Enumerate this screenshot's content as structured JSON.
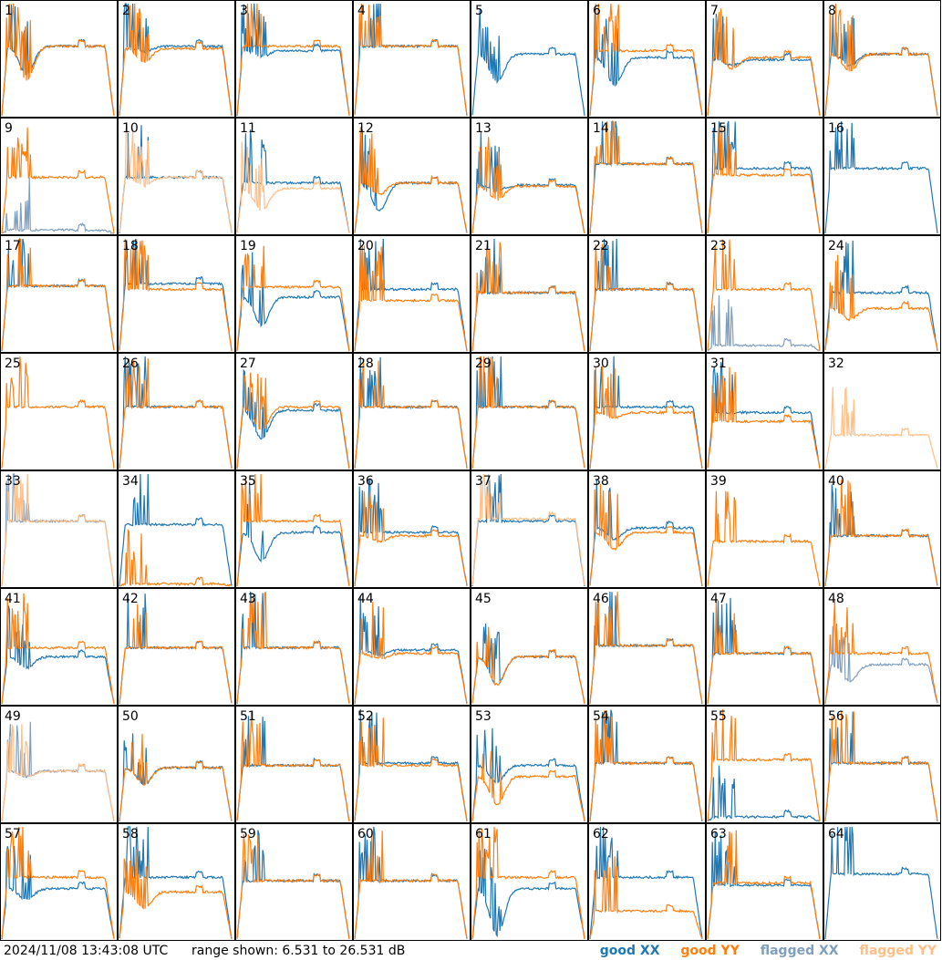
{
  "timestamp": "2024/11/08 13:43:08 UTC",
  "range_text": "range shown: 6.531 to 26.531 dB",
  "legend": [
    {
      "label": "good XX",
      "color": "#1f77b4"
    },
    {
      "label": "good YY",
      "color": "#ff7f0e"
    },
    {
      "label": "flagged XX",
      "color": "#7f9fbf"
    },
    {
      "label": "flagged YY",
      "color": "#ffbf87"
    }
  ],
  "chart_data": {
    "type": "line",
    "title": "",
    "xlabel": "",
    "ylabel": "",
    "ylim": [
      6.531,
      26.531
    ],
    "grid": false,
    "legend_placement": "bottom-right",
    "panels": [
      {
        "id": "1",
        "xx": "good",
        "yy": "good",
        "level_xx": 0.62,
        "level_yy": 0.62,
        "dip_xx": 0.25,
        "dip_yy": 0.3
      },
      {
        "id": "2",
        "xx": "good",
        "yy": "good",
        "level_xx": 0.62,
        "level_yy": 0.6,
        "dip_xx": 0.05,
        "dip_yy": 0.12
      },
      {
        "id": "3",
        "xx": "good",
        "yy": "good",
        "level_xx": 0.58,
        "level_yy": 0.62,
        "dip_xx": 0.05,
        "dip_yy": 0.0
      },
      {
        "id": "4",
        "xx": "good",
        "yy": "good",
        "level_xx": 0.62,
        "level_yy": 0.62,
        "dip_xx": 0.0,
        "dip_yy": 0.0
      },
      {
        "id": "5",
        "xx": "good",
        "yy": "none",
        "level_xx": 0.55,
        "level_yy": 0.0,
        "dip_xx": 0.25,
        "dip_yy": 0.0
      },
      {
        "id": "6",
        "xx": "good",
        "yy": "good",
        "level_xx": 0.52,
        "level_yy": 0.58,
        "dip_xx": 0.25,
        "dip_yy": 0.0
      },
      {
        "id": "7",
        "xx": "good",
        "yy": "good",
        "level_xx": 0.5,
        "level_yy": 0.52,
        "dip_xx": 0.05,
        "dip_yy": 0.1
      },
      {
        "id": "8",
        "xx": "good",
        "yy": "good",
        "level_xx": 0.55,
        "level_yy": 0.55,
        "dip_xx": 0.1,
        "dip_yy": 0.15
      },
      {
        "id": "9",
        "xx": "flagged",
        "yy": "good",
        "level_xx": 0.03,
        "level_yy": 0.5,
        "dip_xx": 0.0,
        "dip_yy": 0.0
      },
      {
        "id": "10",
        "xx": "good",
        "yy": "flagged",
        "level_xx": 0.5,
        "level_yy": 0.5,
        "dip_xx": 0.0,
        "dip_yy": 0.08
      },
      {
        "id": "11",
        "xx": "good",
        "yy": "flagged",
        "level_xx": 0.45,
        "level_yy": 0.4,
        "dip_xx": 0.0,
        "dip_yy": 0.2
      },
      {
        "id": "12",
        "xx": "good",
        "yy": "good",
        "level_xx": 0.45,
        "level_yy": 0.45,
        "dip_xx": 0.25,
        "dip_yy": 0.1
      },
      {
        "id": "13",
        "xx": "good",
        "yy": "good",
        "level_xx": 0.43,
        "level_yy": 0.42,
        "dip_xx": 0.05,
        "dip_yy": 0.12
      },
      {
        "id": "14",
        "xx": "good",
        "yy": "good",
        "level_xx": 0.62,
        "level_yy": 0.62,
        "dip_xx": 0.0,
        "dip_yy": 0.0
      },
      {
        "id": "15",
        "xx": "good",
        "yy": "good",
        "level_xx": 0.58,
        "level_yy": 0.52,
        "dip_xx": 0.0,
        "dip_yy": 0.0
      },
      {
        "id": "16",
        "xx": "good",
        "yy": "none",
        "level_xx": 0.58,
        "level_yy": 0.0,
        "dip_xx": 0.0,
        "dip_yy": 0.0
      },
      {
        "id": "17",
        "xx": "good",
        "yy": "good",
        "level_xx": 0.58,
        "level_yy": 0.58,
        "dip_xx": 0.0,
        "dip_yy": 0.0
      },
      {
        "id": "18",
        "xx": "good",
        "yy": "good",
        "level_xx": 0.6,
        "level_yy": 0.55,
        "dip_xx": 0.0,
        "dip_yy": 0.0
      },
      {
        "id": "19",
        "xx": "good",
        "yy": "good",
        "level_xx": 0.48,
        "level_yy": 0.57,
        "dip_xx": 0.25,
        "dip_yy": 0.0
      },
      {
        "id": "20",
        "xx": "good",
        "yy": "good",
        "level_xx": 0.55,
        "level_yy": 0.45,
        "dip_xx": 0.0,
        "dip_yy": 0.0
      },
      {
        "id": "21",
        "xx": "good",
        "yy": "good",
        "level_xx": 0.52,
        "level_yy": 0.52,
        "dip_xx": 0.0,
        "dip_yy": 0.0
      },
      {
        "id": "22",
        "xx": "good",
        "yy": "good",
        "level_xx": 0.55,
        "level_yy": 0.55,
        "dip_xx": 0.0,
        "dip_yy": 0.0
      },
      {
        "id": "23",
        "xx": "flagged",
        "yy": "good",
        "level_xx": 0.05,
        "level_yy": 0.55,
        "dip_xx": 0.0,
        "dip_yy": 0.0
      },
      {
        "id": "24",
        "xx": "good",
        "yy": "good",
        "level_xx": 0.52,
        "level_yy": 0.38,
        "dip_xx": 0.0,
        "dip_yy": 0.1
      },
      {
        "id": "25",
        "xx": "none",
        "yy": "good",
        "level_xx": 0.0,
        "level_yy": 0.55,
        "dip_xx": 0.0,
        "dip_yy": 0.0
      },
      {
        "id": "26",
        "xx": "good",
        "yy": "good",
        "level_xx": 0.55,
        "level_yy": 0.55,
        "dip_xx": 0.0,
        "dip_yy": 0.0
      },
      {
        "id": "27",
        "xx": "good",
        "yy": "good",
        "level_xx": 0.52,
        "level_yy": 0.55,
        "dip_xx": 0.25,
        "dip_yy": 0.2
      },
      {
        "id": "28",
        "xx": "good",
        "yy": "good",
        "level_xx": 0.55,
        "level_yy": 0.55,
        "dip_xx": 0.0,
        "dip_yy": 0.0
      },
      {
        "id": "29",
        "xx": "good",
        "yy": "good",
        "level_xx": 0.55,
        "level_yy": 0.55,
        "dip_xx": 0.0,
        "dip_yy": 0.0
      },
      {
        "id": "30",
        "xx": "good",
        "yy": "good",
        "level_xx": 0.55,
        "level_yy": 0.5,
        "dip_xx": 0.0,
        "dip_yy": 0.05
      },
      {
        "id": "31",
        "xx": "good",
        "yy": "good",
        "level_xx": 0.5,
        "level_yy": 0.42,
        "dip_xx": 0.0,
        "dip_yy": 0.0
      },
      {
        "id": "32",
        "xx": "none",
        "yy": "flagged",
        "level_xx": 0.0,
        "level_yy": 0.3,
        "dip_xx": 0.0,
        "dip_yy": 0.0
      },
      {
        "id": "33",
        "xx": "flagged",
        "yy": "flagged",
        "level_xx": 0.58,
        "level_yy": 0.58,
        "dip_xx": 0.0,
        "dip_yy": 0.0
      },
      {
        "id": "34",
        "xx": "good",
        "yy": "good",
        "level_xx": 0.55,
        "level_yy": 0.02,
        "dip_xx": 0.0,
        "dip_yy": 0.0
      },
      {
        "id": "35",
        "xx": "good",
        "yy": "good",
        "level_xx": 0.48,
        "level_yy": 0.58,
        "dip_xx": 0.25,
        "dip_yy": 0.0
      },
      {
        "id": "36",
        "xx": "good",
        "yy": "good",
        "level_xx": 0.48,
        "level_yy": 0.45,
        "dip_xx": 0.0,
        "dip_yy": 0.05
      },
      {
        "id": "37",
        "xx": "good",
        "yy": "flagged",
        "level_xx": 0.58,
        "level_yy": 0.6,
        "dip_xx": 0.0,
        "dip_yy": 0.0
      },
      {
        "id": "38",
        "xx": "good",
        "yy": "good",
        "level_xx": 0.52,
        "level_yy": 0.48,
        "dip_xx": 0.1,
        "dip_yy": 0.15
      },
      {
        "id": "39",
        "xx": "none",
        "yy": "good",
        "level_xx": 0.0,
        "level_yy": 0.4,
        "dip_xx": 0.0,
        "dip_yy": 0.0
      },
      {
        "id": "40",
        "xx": "good",
        "yy": "good",
        "level_xx": 0.45,
        "level_yy": 0.45,
        "dip_xx": 0.0,
        "dip_yy": 0.0
      },
      {
        "id": "41",
        "xx": "good",
        "yy": "good",
        "level_xx": 0.42,
        "level_yy": 0.5,
        "dip_xx": 0.1,
        "dip_yy": 0.0
      },
      {
        "id": "42",
        "xx": "good",
        "yy": "good",
        "level_xx": 0.5,
        "level_yy": 0.5,
        "dip_xx": 0.0,
        "dip_yy": 0.0
      },
      {
        "id": "43",
        "xx": "good",
        "yy": "good",
        "level_xx": 0.5,
        "level_yy": 0.5,
        "dip_xx": 0.0,
        "dip_yy": 0.0
      },
      {
        "id": "44",
        "xx": "good",
        "yy": "good",
        "level_xx": 0.48,
        "level_yy": 0.45,
        "dip_xx": 0.05,
        "dip_yy": 0.05
      },
      {
        "id": "45",
        "xx": "good",
        "yy": "good",
        "level_xx": 0.42,
        "level_yy": 0.42,
        "dip_xx": 0.25,
        "dip_yy": 0.25
      },
      {
        "id": "46",
        "xx": "good",
        "yy": "good",
        "level_xx": 0.52,
        "level_yy": 0.52,
        "dip_xx": 0.0,
        "dip_yy": 0.0
      },
      {
        "id": "47",
        "xx": "good",
        "yy": "good",
        "level_xx": 0.45,
        "level_yy": 0.45,
        "dip_xx": 0.0,
        "dip_yy": 0.0
      },
      {
        "id": "48",
        "xx": "flagged",
        "yy": "good",
        "level_xx": 0.35,
        "level_yy": 0.45,
        "dip_xx": 0.15,
        "dip_yy": 0.0
      },
      {
        "id": "49",
        "xx": "flagged",
        "yy": "flagged",
        "level_xx": 0.45,
        "level_yy": 0.45,
        "dip_xx": 0.05,
        "dip_yy": 0.05
      },
      {
        "id": "50",
        "xx": "good",
        "yy": "good",
        "level_xx": 0.48,
        "level_yy": 0.48,
        "dip_xx": 0.15,
        "dip_yy": 0.15
      },
      {
        "id": "51",
        "xx": "good",
        "yy": "good",
        "level_xx": 0.5,
        "level_yy": 0.5,
        "dip_xx": 0.0,
        "dip_yy": 0.0
      },
      {
        "id": "52",
        "xx": "good",
        "yy": "good",
        "level_xx": 0.52,
        "level_yy": 0.5,
        "dip_xx": 0.0,
        "dip_yy": 0.0
      },
      {
        "id": "53",
        "xx": "good",
        "yy": "good",
        "level_xx": 0.5,
        "level_yy": 0.4,
        "dip_xx": 0.15,
        "dip_yy": 0.25
      },
      {
        "id": "54",
        "xx": "good",
        "yy": "good",
        "level_xx": 0.52,
        "level_yy": 0.52,
        "dip_xx": 0.0,
        "dip_yy": 0.0
      },
      {
        "id": "55",
        "xx": "good",
        "yy": "good",
        "level_xx": 0.04,
        "level_yy": 0.55,
        "dip_xx": 0.0,
        "dip_yy": 0.0
      },
      {
        "id": "56",
        "xx": "good",
        "yy": "good",
        "level_xx": 0.52,
        "level_yy": 0.52,
        "dip_xx": 0.0,
        "dip_yy": 0.0
      },
      {
        "id": "57",
        "xx": "good",
        "yy": "good",
        "level_xx": 0.45,
        "level_yy": 0.55,
        "dip_xx": 0.1,
        "dip_yy": 0.0
      },
      {
        "id": "58",
        "xx": "good",
        "yy": "good",
        "level_xx": 0.55,
        "level_yy": 0.42,
        "dip_xx": 0.0,
        "dip_yy": 0.15
      },
      {
        "id": "59",
        "xx": "good",
        "yy": "good",
        "level_xx": 0.52,
        "level_yy": 0.52,
        "dip_xx": 0.0,
        "dip_yy": 0.0
      },
      {
        "id": "60",
        "xx": "good",
        "yy": "good",
        "level_xx": 0.52,
        "level_yy": 0.52,
        "dip_xx": 0.0,
        "dip_yy": 0.0
      },
      {
        "id": "61",
        "xx": "good",
        "yy": "good",
        "level_xx": 0.45,
        "level_yy": 0.55,
        "dip_xx": 0.42,
        "dip_yy": 0.0
      },
      {
        "id": "62",
        "xx": "good",
        "yy": "good",
        "level_xx": 0.55,
        "level_yy": 0.25,
        "dip_xx": 0.0,
        "dip_yy": 0.0
      },
      {
        "id": "63",
        "xx": "good",
        "yy": "good",
        "level_xx": 0.48,
        "level_yy": 0.5,
        "dip_xx": 0.0,
        "dip_yy": 0.0
      },
      {
        "id": "64",
        "xx": "good",
        "yy": "none",
        "level_xx": 0.58,
        "level_yy": 0.0,
        "dip_xx": 0.0,
        "dip_yy": 0.0
      }
    ]
  }
}
